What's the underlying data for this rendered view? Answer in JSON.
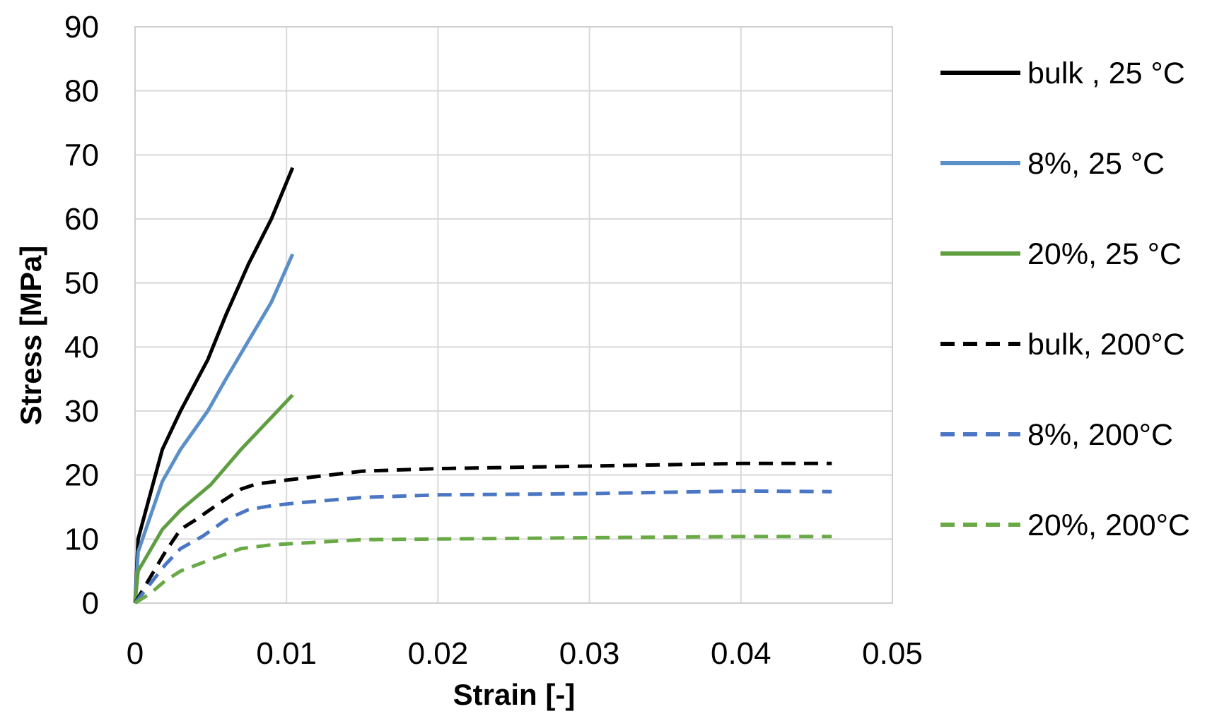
{
  "chart_data": {
    "type": "line",
    "title": "",
    "xlabel": "Strain [-]",
    "ylabel": "Stress [MPa]",
    "xlim": [
      0,
      0.05
    ],
    "ylim": [
      0,
      90
    ],
    "x_ticks": [
      0,
      0.01,
      0.02,
      0.03,
      0.04,
      0.05
    ],
    "x_tick_labels": [
      "0",
      "0.01",
      "0.02",
      "0.03",
      "0.04",
      "0.05"
    ],
    "y_ticks": [
      0,
      10,
      20,
      30,
      40,
      50,
      60,
      70,
      80,
      90
    ],
    "y_tick_labels": [
      "0",
      "10",
      "20",
      "30",
      "40",
      "50",
      "60",
      "70",
      "80",
      "90"
    ],
    "grid": true,
    "legend_position": "right",
    "series": [
      {
        "name": "bulk , 25 °C",
        "color": "#000000",
        "style": "solid",
        "points": [
          [
            0,
            0
          ],
          [
            0.0002,
            10
          ],
          [
            0.0018,
            24
          ],
          [
            0.003,
            30
          ],
          [
            0.0048,
            38
          ],
          [
            0.006,
            45
          ],
          [
            0.0075,
            53
          ],
          [
            0.009,
            60
          ],
          [
            0.0104,
            68
          ]
        ]
      },
      {
        "name": "8%, 25 °C",
        "color": "#5b8fc7",
        "style": "solid",
        "points": [
          [
            0,
            0
          ],
          [
            0.0002,
            8
          ],
          [
            0.0018,
            19
          ],
          [
            0.003,
            24
          ],
          [
            0.0048,
            30
          ],
          [
            0.006,
            35
          ],
          [
            0.0075,
            41
          ],
          [
            0.009,
            47
          ],
          [
            0.0104,
            54.5
          ]
        ]
      },
      {
        "name": "20%, 25 °C",
        "color": "#5f9e41",
        "style": "solid",
        "points": [
          [
            0,
            0
          ],
          [
            0.0002,
            5
          ],
          [
            0.0018,
            11.5
          ],
          [
            0.003,
            14.5
          ],
          [
            0.005,
            18.5
          ],
          [
            0.007,
            24
          ],
          [
            0.009,
            29
          ],
          [
            0.0104,
            32.5
          ]
        ]
      },
      {
        "name": "bulk, 200°C",
        "color": "#000000",
        "style": "dashed",
        "points": [
          [
            0,
            0
          ],
          [
            0.001,
            4
          ],
          [
            0.002,
            8
          ],
          [
            0.003,
            11.5
          ],
          [
            0.004,
            13
          ],
          [
            0.0055,
            15.5
          ],
          [
            0.007,
            17.8
          ],
          [
            0.008,
            18.6
          ],
          [
            0.01,
            19.2
          ],
          [
            0.015,
            20.6
          ],
          [
            0.02,
            21
          ],
          [
            0.03,
            21.4
          ],
          [
            0.04,
            21.8
          ],
          [
            0.046,
            21.8
          ]
        ]
      },
      {
        "name": "8%, 200°C",
        "color": "#4a76c4",
        "style": "dashed",
        "points": [
          [
            0,
            0
          ],
          [
            0.001,
            3
          ],
          [
            0.002,
            6
          ],
          [
            0.003,
            8.5
          ],
          [
            0.0045,
            10.5
          ],
          [
            0.006,
            13
          ],
          [
            0.0075,
            14.6
          ],
          [
            0.009,
            15.2
          ],
          [
            0.0105,
            15.6
          ],
          [
            0.015,
            16.5
          ],
          [
            0.02,
            16.9
          ],
          [
            0.03,
            17.1
          ],
          [
            0.04,
            17.5
          ],
          [
            0.046,
            17.4
          ]
        ]
      },
      {
        "name": "20%, 200°C",
        "color": "#6aaa46",
        "style": "dashed",
        "points": [
          [
            0,
            0
          ],
          [
            0.001,
            1.5
          ],
          [
            0.002,
            3.5
          ],
          [
            0.003,
            5
          ],
          [
            0.005,
            6.8
          ],
          [
            0.007,
            8.5
          ],
          [
            0.009,
            9.1
          ],
          [
            0.0105,
            9.3
          ],
          [
            0.015,
            9.9
          ],
          [
            0.02,
            10.0
          ],
          [
            0.03,
            10.2
          ],
          [
            0.04,
            10.4
          ],
          [
            0.046,
            10.4
          ]
        ]
      }
    ]
  }
}
